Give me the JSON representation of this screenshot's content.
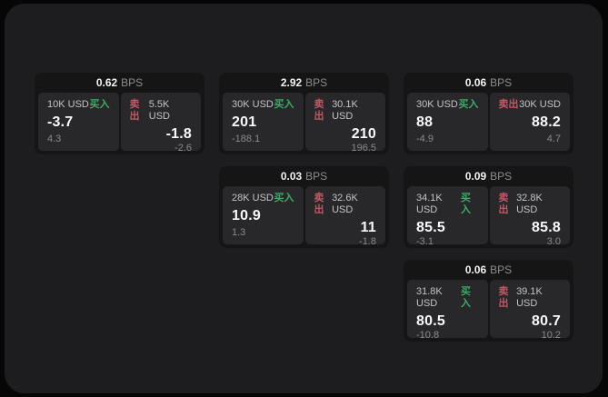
{
  "labels": {
    "bps": "BPS",
    "buy": "买入",
    "sell": "卖出"
  },
  "colors": {
    "buy": "#3cab66",
    "sell": "#c25864"
  },
  "cards": [
    {
      "bps": "0.62",
      "buy": {
        "size": "10K USD",
        "price": "-3.7",
        "delta": "4.3"
      },
      "sell": {
        "size": "5.5K USD",
        "price": "-1.8",
        "delta": "-2.6"
      }
    },
    {
      "bps": "2.92",
      "buy": {
        "size": "30K USD",
        "price": "201",
        "delta": "-188.1"
      },
      "sell": {
        "size": "30.1K USD",
        "price": "210",
        "delta": "196.5"
      }
    },
    {
      "bps": "0.06",
      "buy": {
        "size": "30K USD",
        "price": "88",
        "delta": "-4.9"
      },
      "sell": {
        "size": "30K USD",
        "price": "88.2",
        "delta": "4.7"
      }
    },
    {
      "bps": "0.03",
      "buy": {
        "size": "28K USD",
        "price": "10.9",
        "delta": "1.3"
      },
      "sell": {
        "size": "32.6K USD",
        "price": "11",
        "delta": "-1.8"
      }
    },
    {
      "bps": "0.09",
      "buy": {
        "size": "34.1K USD",
        "price": "85.5",
        "delta": "-3.1"
      },
      "sell": {
        "size": "32.8K USD",
        "price": "85.8",
        "delta": "3.0"
      }
    },
    {
      "bps": "0.06",
      "buy": {
        "size": "31.8K USD",
        "price": "80.5",
        "delta": "-10.8"
      },
      "sell": {
        "size": "39.1K USD",
        "price": "80.7",
        "delta": "10.2"
      }
    }
  ]
}
